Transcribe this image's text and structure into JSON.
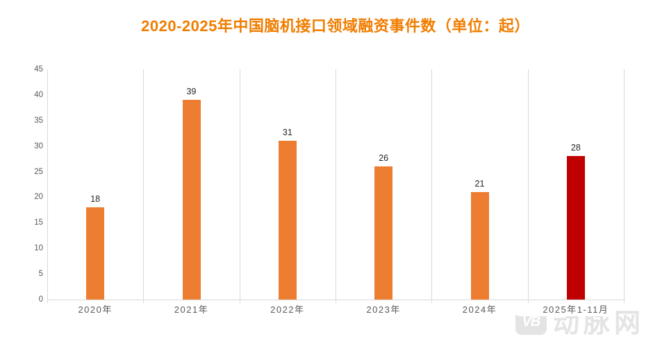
{
  "chart_data": {
    "type": "bar",
    "title": "2020-2025年中国脑机接口领域融资事件数（单位：起）",
    "categories": [
      "2020年",
      "2021年",
      "2022年",
      "2023年",
      "2024年",
      "2025年1-11月"
    ],
    "values": [
      18,
      39,
      31,
      26,
      21,
      28
    ],
    "data_labels": [
      "18",
      "39",
      "31",
      "26",
      "21",
      "28"
    ],
    "yticks": [
      0,
      5,
      10,
      15,
      20,
      25,
      30,
      35,
      40,
      45
    ],
    "ylim": [
      0,
      45
    ],
    "xlabel": "",
    "ylabel": "",
    "legend": "none",
    "grid": {
      "vertical": true,
      "horizontal": false
    },
    "bar_colors": [
      "#ED7D31",
      "#ED7D31",
      "#ED7D31",
      "#ED7D31",
      "#ED7D31",
      "#C00000"
    ],
    "colors": {
      "title": "#F07D00",
      "bar_default": "#ED7D31",
      "bar_highlight": "#C00000",
      "axis_text": "#595959",
      "gridline": "#D9D9D9",
      "value_label": "#262626",
      "background": "#FFFFFF",
      "watermark": "#E4E4E4"
    }
  },
  "watermark": {
    "icon_text": "VB",
    "text": "动脉网"
  }
}
